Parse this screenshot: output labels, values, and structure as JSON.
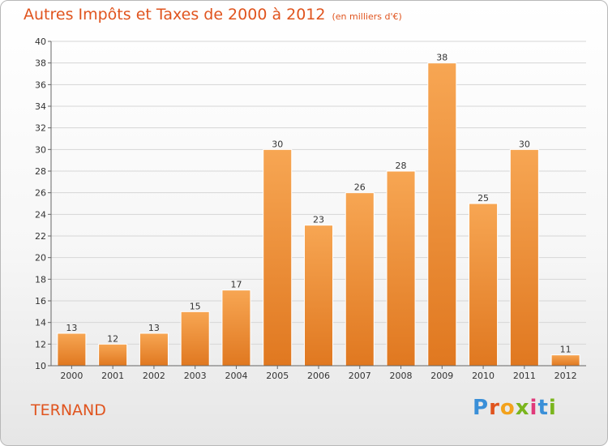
{
  "chart_data": {
    "type": "bar",
    "title": "Autres Impôts et Taxes de 2000 à 2012",
    "subtitle": "(en milliers d'€)",
    "categories": [
      "2000",
      "2001",
      "2002",
      "2003",
      "2004",
      "2005",
      "2006",
      "2007",
      "2008",
      "2009",
      "2010",
      "2011",
      "2012"
    ],
    "values": [
      13,
      12,
      13,
      15,
      17,
      30,
      23,
      26,
      28,
      38,
      25,
      30,
      11
    ],
    "ylim": [
      10,
      40
    ],
    "yticks": [
      10,
      12,
      14,
      16,
      18,
      20,
      22,
      24,
      26,
      28,
      30,
      32,
      34,
      36,
      38,
      40
    ],
    "grid": true,
    "bar_color": "#f29a45"
  },
  "footer": {
    "place": "TERNAND",
    "logo": [
      "P",
      "r",
      "o",
      "x",
      "i",
      "t",
      "i"
    ],
    "logo_colors": [
      "#3a8fd8",
      "#e0541e",
      "#f3a21c",
      "#7ab51d",
      "#e03a7a",
      "#3a8fd8",
      "#7ab51d"
    ]
  }
}
